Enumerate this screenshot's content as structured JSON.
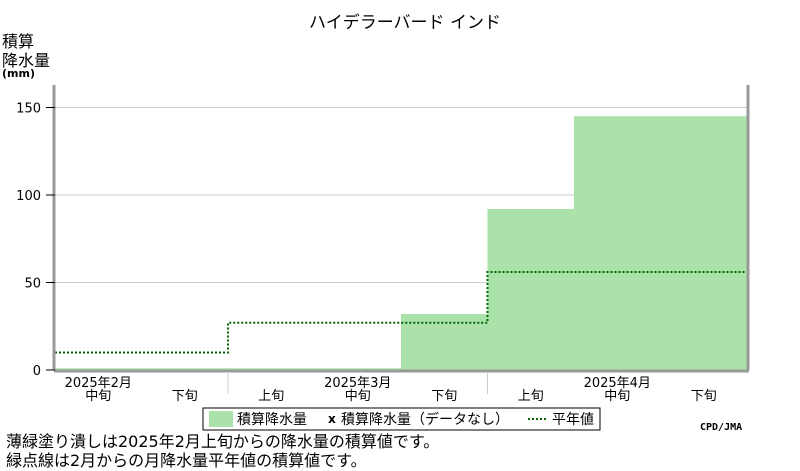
{
  "chart_data": {
    "type": "bar",
    "title": "ハイデラーバード インド",
    "ylabel": [
      "積算",
      "降水量"
    ],
    "yunit": "(mm)",
    "ylim": [
      0,
      160
    ],
    "yticks": [
      0,
      50,
      100,
      150
    ],
    "grid": true,
    "legend_position": "bottom",
    "periods": [
      {
        "month": "2025年2月",
        "dekad": "中旬"
      },
      {
        "month": "",
        "dekad": "下旬"
      },
      {
        "month": "",
        "dekad": "上旬"
      },
      {
        "month": "2025年3月",
        "dekad": "中旬"
      },
      {
        "month": "",
        "dekad": "下旬"
      },
      {
        "month": "",
        "dekad": "上旬"
      },
      {
        "month": "2025年4月",
        "dekad": "中旬"
      },
      {
        "month": "",
        "dekad": "下旬"
      }
    ],
    "series": [
      {
        "name": "積算降水量",
        "kind": "bar",
        "color": "#aae2aa",
        "values": [
          1,
          1,
          1,
          1,
          32,
          92,
          145,
          145
        ]
      },
      {
        "name": "積算降水量（データなし）",
        "kind": "missing-marker",
        "color": "#000000",
        "values": [
          null,
          null,
          null,
          null,
          null,
          null,
          null,
          null
        ]
      },
      {
        "name": "平年値",
        "kind": "step-dotted",
        "color": "#006400",
        "values": [
          10,
          10,
          27,
          27,
          27,
          56,
          56,
          56
        ]
      }
    ]
  },
  "legend": {
    "bar_label": "積算降水量",
    "missing_symbol": "x",
    "missing_label": "積算降水量（データなし）",
    "normal_label": "平年値"
  },
  "credit": "CPD/JMA",
  "notes": [
    "薄緑塗り潰しは2025年2月上旬からの降水量の積算値です。",
    "緑点線は2月からの月降水量平年値の積算値です。"
  ]
}
